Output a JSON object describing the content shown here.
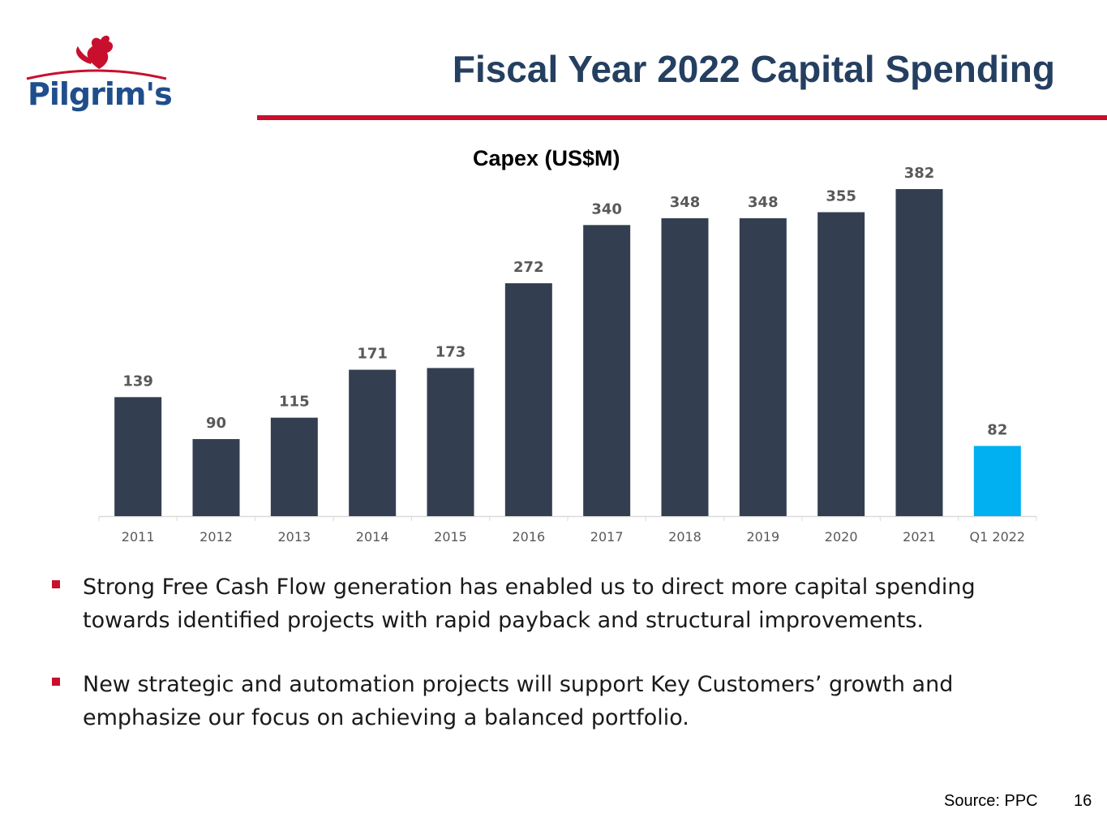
{
  "header": {
    "title": "Fiscal Year 2022 Capital Spending",
    "logo_text": "Pilgrim's",
    "accent_color": "#c8102e",
    "title_color": "#243f60"
  },
  "chart_data": {
    "type": "bar",
    "title": "Capex (US$M)",
    "categories": [
      "2011",
      "2012",
      "2013",
      "2014",
      "2015",
      "2016",
      "2017",
      "2018",
      "2019",
      "2020",
      "2021",
      "Q1 2022"
    ],
    "values": [
      139,
      90,
      115,
      171,
      173,
      272,
      340,
      348,
      348,
      355,
      382,
      82
    ],
    "bar_colors": [
      "#333f50",
      "#333f50",
      "#333f50",
      "#333f50",
      "#333f50",
      "#333f50",
      "#333f50",
      "#333f50",
      "#333f50",
      "#333f50",
      "#333f50",
      "#00b0f0"
    ],
    "ylim": [
      0,
      382
    ],
    "grid": false,
    "legend": "none",
    "xlabel": "",
    "ylabel": ""
  },
  "bullets": [
    "Strong Free Cash Flow generation has enabled us to direct more capital spending towards identified projects with rapid payback and structural improvements.",
    "New strategic and automation projects will support Key Customers’ growth and emphasize our focus on achieving a balanced portfolio."
  ],
  "footer": {
    "source": "Source: PPC",
    "page_number": "16"
  }
}
